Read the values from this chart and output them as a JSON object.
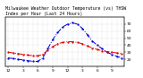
{
  "title_line1": "Milwaukee Weather Outdoor Temperature (vs) THSW",
  "title_line2": "Index per Hour (Last 24 Hours)",
  "hours": [
    0,
    1,
    2,
    3,
    4,
    5,
    6,
    7,
    8,
    9,
    10,
    11,
    12,
    13,
    14,
    15,
    16,
    17,
    18,
    19,
    20,
    21,
    22,
    23
  ],
  "temp": [
    30,
    29,
    28,
    27,
    26,
    25,
    25,
    27,
    33,
    38,
    42,
    44,
    45,
    45,
    44,
    42,
    39,
    36,
    34,
    32,
    31,
    30,
    29,
    28
  ],
  "thsw": [
    22,
    21,
    20,
    19,
    18,
    17,
    17,
    22,
    35,
    48,
    58,
    66,
    70,
    72,
    70,
    64,
    55,
    46,
    40,
    35,
    30,
    27,
    24,
    22
  ],
  "temp_color": "#dd0000",
  "thsw_color": "#0000dd",
  "ylim": [
    10,
    80
  ],
  "yticks": [
    20,
    30,
    40,
    50,
    60,
    70
  ],
  "xtick_positions": [
    0,
    3,
    6,
    9,
    12,
    15,
    18,
    21
  ],
  "xtick_labels": [
    "12",
    "3",
    "6",
    "9",
    "12",
    "3",
    "6",
    "9"
  ],
  "grid_color": "#bbbbbb",
  "bg_color": "#ffffff",
  "title_fontsize": 3.5,
  "tick_fontsize": 3.2,
  "linewidth": 0.7,
  "markersize": 1.2
}
